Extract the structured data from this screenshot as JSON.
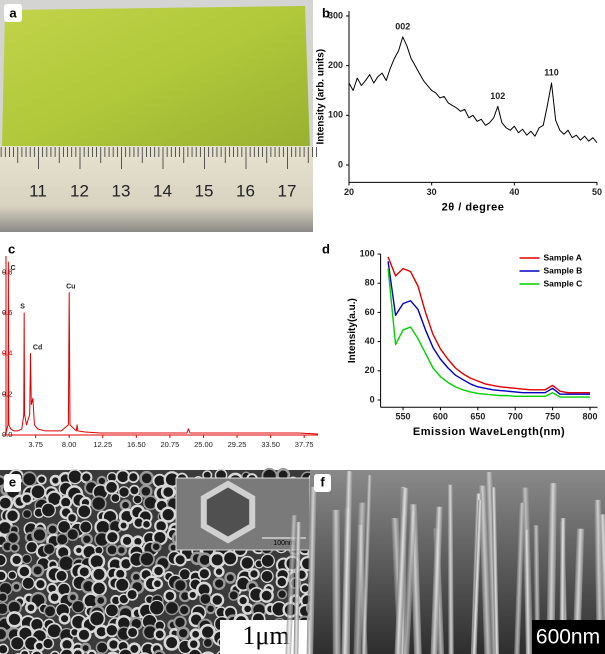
{
  "photos": {
    "a": {
      "panel": "a",
      "ruler": [
        "11",
        "12",
        "13",
        "14",
        "15",
        "16",
        "17"
      ]
    },
    "e": {
      "panel": "e",
      "inset_scale": "100nm",
      "scale": "1μm"
    },
    "f": {
      "panel": "f",
      "scale": "600nm"
    }
  },
  "chart_data": [
    {
      "type": "line",
      "panel": "b",
      "y_label": "Intensity (arb. units)",
      "x_label": "2θ / degree",
      "color": "#000000",
      "x": [
        20,
        20.5,
        21,
        21.5,
        22,
        22.5,
        23,
        23.5,
        24,
        24.5,
        25,
        25.5,
        26,
        26.5,
        27,
        27.5,
        28,
        28.5,
        29,
        29.5,
        30,
        30.5,
        31,
        31.5,
        32,
        32.5,
        33,
        33.5,
        34,
        34.5,
        35,
        35.5,
        36,
        36.5,
        37,
        37.5,
        38,
        38.5,
        39,
        39.5,
        40,
        40.5,
        41,
        41.5,
        42,
        42.5,
        43,
        43.5,
        44,
        44.5,
        45,
        45.5,
        46,
        46.5,
        47,
        47.5,
        48,
        48.5,
        49,
        49.5,
        50
      ],
      "values": [
        165,
        150,
        175,
        160,
        170,
        182,
        165,
        178,
        185,
        170,
        195,
        215,
        230,
        258,
        240,
        215,
        200,
        185,
        170,
        160,
        150,
        145,
        135,
        138,
        125,
        120,
        115,
        108,
        112,
        95,
        100,
        88,
        92,
        80,
        85,
        95,
        118,
        85,
        75,
        70,
        78,
        65,
        72,
        60,
        68,
        58,
        75,
        80,
        120,
        165,
        90,
        70,
        62,
        70,
        55,
        60,
        50,
        58,
        48,
        55,
        45
      ],
      "annotations": [
        {
          "text": "002",
          "x": 26.5,
          "y": 278
        },
        {
          "text": "102",
          "x": 38,
          "y": 138
        },
        {
          "text": "110",
          "x": 44.5,
          "y": 185
        }
      ],
      "xlim": [
        20,
        50
      ],
      "ylim": [
        -35,
        310
      ],
      "xticks": [
        20,
        30,
        40,
        50
      ],
      "yticks": [
        0,
        100,
        200,
        300
      ]
    },
    {
      "type": "line",
      "panel": "c",
      "color": "#e00000",
      "x": [
        0,
        0.25,
        0.3,
        0.35,
        0.6,
        1,
        1.5,
        2,
        2.25,
        2.3,
        2.35,
        2.6,
        3,
        3.1,
        3.2,
        3.4,
        3.6,
        4,
        5,
        6,
        7,
        7.9,
        8,
        8.1,
        8.9,
        9,
        9.1,
        10,
        12,
        15,
        18,
        21,
        22.9,
        23.1,
        23.3,
        25,
        28,
        31,
        34,
        37,
        39.5
      ],
      "values": [
        0.01,
        0.05,
        0.85,
        0.05,
        0.03,
        0.02,
        0.02,
        0.03,
        0.1,
        0.6,
        0.1,
        0.05,
        0.1,
        0.4,
        0.15,
        0.18,
        0.05,
        0.03,
        0.02,
        0.02,
        0.02,
        0.05,
        0.7,
        0.05,
        0.02,
        0.05,
        0.02,
        0.015,
        0.01,
        0.01,
        0.01,
        0.01,
        0.01,
        0.03,
        0.01,
        0.01,
        0.01,
        0.01,
        0.01,
        0.01,
        0.005
      ],
      "annotations": [
        {
          "text": "C",
          "x": 0.9,
          "y": 0.82
        },
        {
          "text": "S",
          "x": 2.1,
          "y": 0.63
        },
        {
          "text": "Cd",
          "x": 4.0,
          "y": 0.43
        },
        {
          "text": "Cu",
          "x": 8.2,
          "y": 0.73
        }
      ],
      "xlim": [
        0,
        39.5
      ],
      "ylim": [
        0,
        0.88
      ],
      "xticks": [
        3.75,
        {
          "value": 8,
          "label": "8.00"
        },
        12.25,
        {
          "value": 16.5,
          "label": "16.50"
        },
        20.75,
        {
          "value": 25,
          "label": "25.00"
        },
        29.25,
        {
          "value": 33.5,
          "label": "33.50"
        },
        37.75
      ],
      "yticks": [
        {
          "value": 0,
          "label": "0.0"
        },
        0.2,
        0.4,
        0.6,
        0.8
      ]
    },
    {
      "type": "line",
      "panel": "d",
      "y_label": "Intensity(a.u.)",
      "x_label": "Emission WaveLength(nm)",
      "legend": "upper right",
      "x": [
        530,
        540,
        550,
        560,
        570,
        580,
        590,
        600,
        610,
        620,
        630,
        640,
        650,
        660,
        670,
        680,
        690,
        700,
        710,
        720,
        730,
        740,
        750,
        760,
        770,
        780,
        790,
        800
      ],
      "series": [
        {
          "name": "Sample A",
          "color": "#e00000",
          "values": [
            98,
            85,
            90,
            88,
            78,
            60,
            45,
            35,
            28,
            22,
            18,
            15,
            13,
            11,
            10,
            9,
            8.5,
            8,
            7.5,
            7,
            7,
            7,
            10,
            6,
            5,
            5,
            5,
            5
          ]
        },
        {
          "name": "Sample B",
          "color": "#0000c0",
          "values": [
            95,
            58,
            66,
            68,
            62,
            48,
            36,
            28,
            22,
            17,
            14,
            11,
            9,
            8,
            7,
            6.5,
            6,
            5.5,
            5,
            5,
            5,
            5,
            8,
            4,
            4,
            4,
            4,
            4
          ]
        },
        {
          "name": "Sample C",
          "color": "#00d000",
          "values": [
            90,
            38,
            48,
            50,
            42,
            32,
            22,
            16,
            12,
            9,
            7,
            5.5,
            4.5,
            4,
            3.5,
            3,
            3,
            2.5,
            2.5,
            2.5,
            2.5,
            2.5,
            5,
            2,
            2,
            2,
            2,
            2
          ]
        }
      ],
      "xlim": [
        520,
        810
      ],
      "ylim": [
        -5,
        100
      ],
      "xticks": [
        550,
        600,
        650,
        700,
        750,
        800
      ],
      "yticks": [
        0,
        20,
        40,
        60,
        80,
        100
      ]
    }
  ]
}
